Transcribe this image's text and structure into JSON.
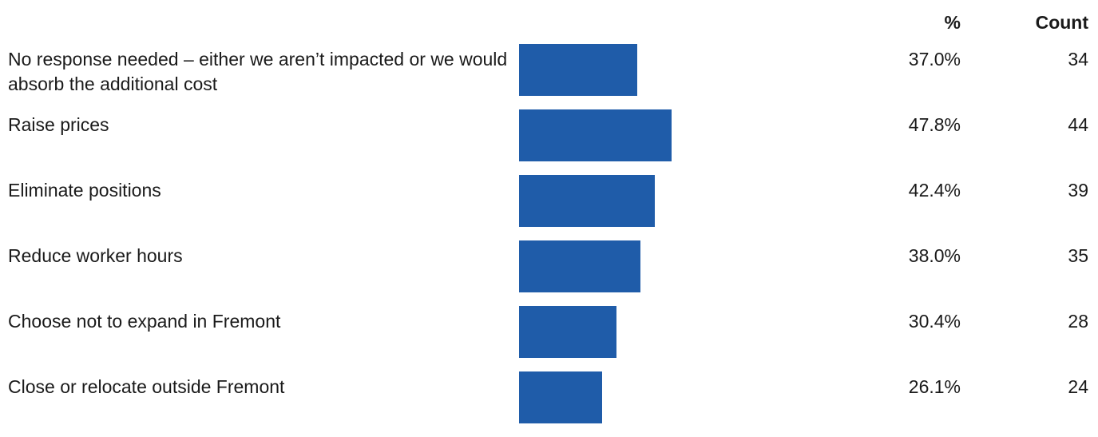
{
  "chart_data": {
    "type": "bar",
    "orientation": "horizontal",
    "bar_color": "#1f5ca9",
    "headers": {
      "percent": "%",
      "count": "Count"
    },
    "xlim": [
      0,
      100
    ],
    "rows": [
      {
        "label": "No response needed – either we aren’t impacted or we would absorb the additional cost",
        "value": 37.0,
        "percent_text": "37.0%",
        "count": "34"
      },
      {
        "label": "Raise prices",
        "value": 47.8,
        "percent_text": "47.8%",
        "count": "44"
      },
      {
        "label": "Eliminate positions",
        "value": 42.4,
        "percent_text": "42.4%",
        "count": "39"
      },
      {
        "label": "Reduce worker hours",
        "value": 38.0,
        "percent_text": "38.0%",
        "count": "35"
      },
      {
        "label": "Choose not to expand in Fremont",
        "value": 30.4,
        "percent_text": "30.4%",
        "count": "28"
      },
      {
        "label": "Close or relocate outside Fremont",
        "value": 26.1,
        "percent_text": "26.1%",
        "count": "24"
      }
    ]
  }
}
